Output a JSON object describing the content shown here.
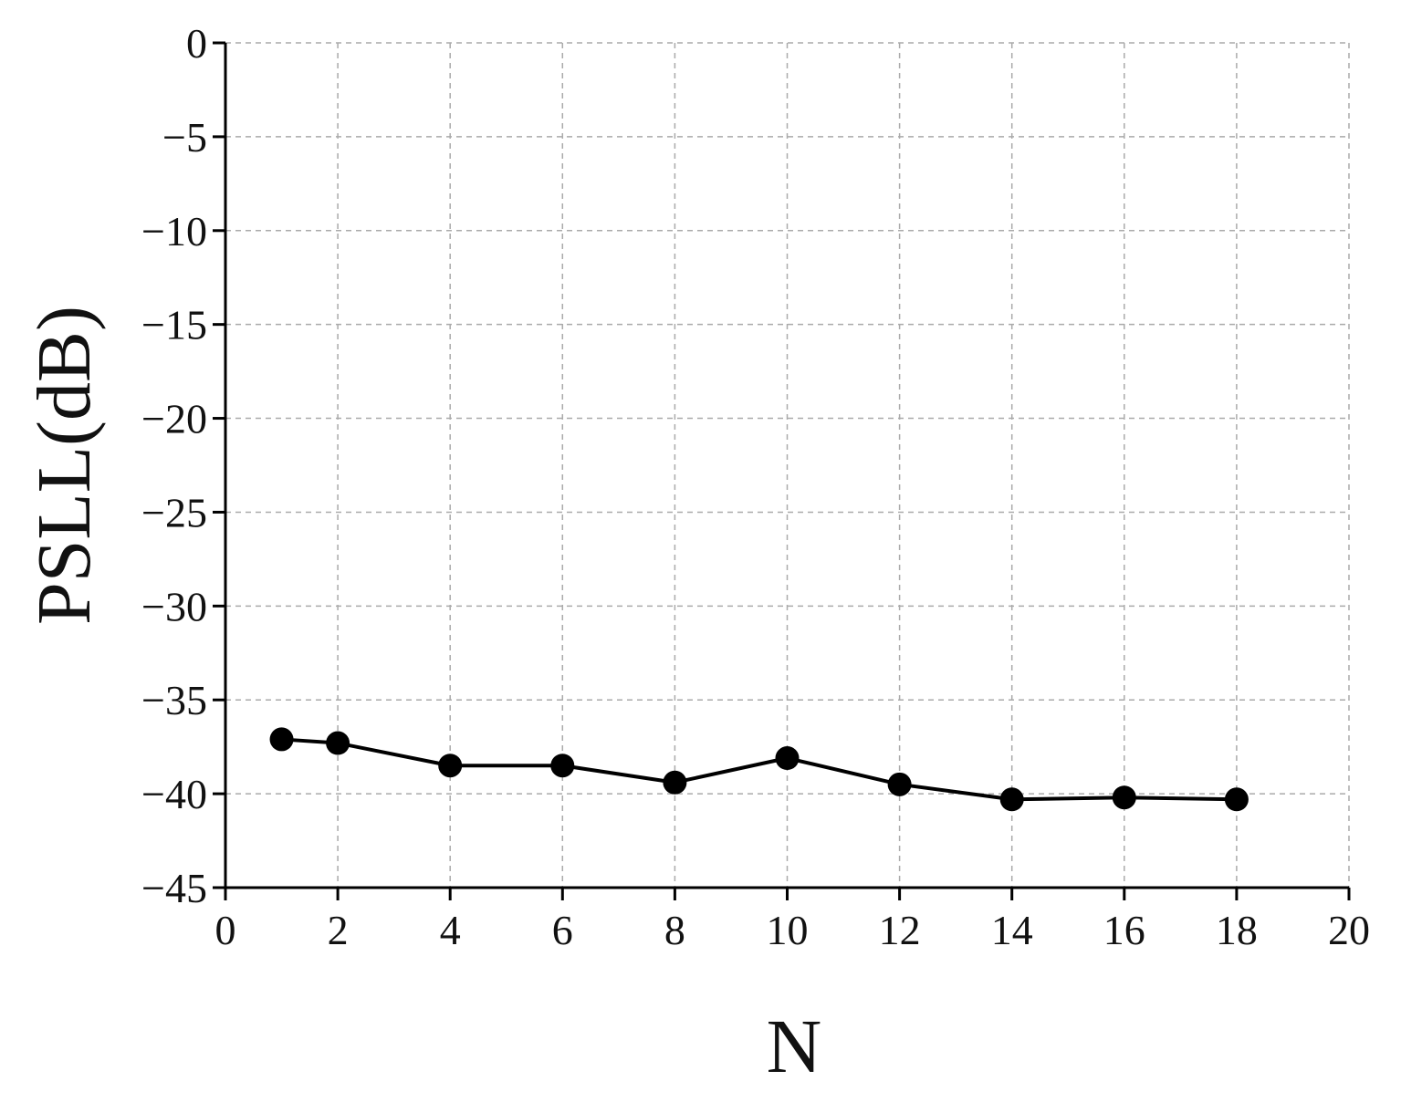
{
  "chart_data": {
    "type": "line",
    "x_label": "N",
    "y_label": "PSLL(dB)",
    "x": [
      1,
      2,
      4,
      6,
      8,
      10,
      12,
      14,
      16,
      18
    ],
    "series": [
      {
        "color": "#000000",
        "values": [
          -37.1,
          -37.3,
          -38.5,
          -38.5,
          -39.4,
          -38.1,
          -39.5,
          -40.3,
          -40.2,
          -40.3
        ]
      }
    ],
    "xlim": [
      0,
      20
    ],
    "xticks": [
      0,
      2,
      4,
      6,
      8,
      10,
      12,
      14,
      16,
      18,
      20
    ],
    "ylim": [
      -45,
      0
    ],
    "yticks": [
      {
        "value": -45,
        "label": "−45"
      },
      {
        "value": -40,
        "label": "−40"
      },
      {
        "value": -35,
        "label": "−35"
      },
      {
        "value": -30,
        "label": "−30"
      },
      {
        "value": -25,
        "label": "−25"
      },
      {
        "value": -20,
        "label": "−20"
      },
      {
        "value": -15,
        "label": "−15"
      },
      {
        "value": -10,
        "label": "−10"
      },
      {
        "value": -5,
        "label": "−5"
      },
      0
    ],
    "grid": true
  }
}
